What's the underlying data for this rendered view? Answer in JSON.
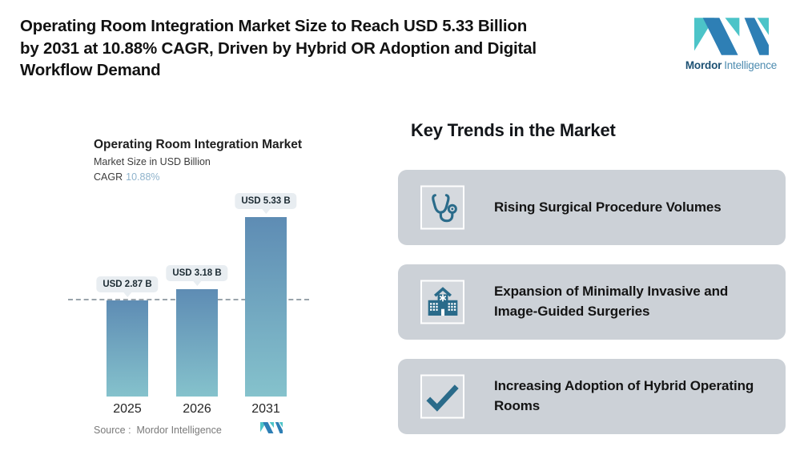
{
  "header": {
    "title_lines": [
      "Operating Room Integration Market Size to Reach USD 5.33 Billion",
      "by 2031 at 10.88% CAGR, Driven by Hybrid OR Adoption and Digital",
      "Workflow Demand"
    ]
  },
  "brand": {
    "name_bold": "Mordor",
    "name_light": "Intelligence"
  },
  "chart": {
    "title": "Operating Room Integration Market",
    "subtitle": "Market Size in USD Billion",
    "cagr_label": "CAGR",
    "cagr_value": "10.88%",
    "source_label": "Source :  Mordor Intelligence"
  },
  "chart_data": {
    "type": "bar",
    "title": "Operating Room Integration Market",
    "ylabel": "Market Size in USD Billion",
    "categories": [
      "2025",
      "2026",
      "2031"
    ],
    "values": [
      2.87,
      3.18,
      5.33
    ],
    "bar_labels": [
      "USD 2.87 B",
      "USD 3.18 B",
      "USD 5.33 B"
    ],
    "cagr": "10.88%",
    "reference_line": {
      "value": 2.87,
      "style": "dashed"
    },
    "ylim": [
      0,
      5.6
    ],
    "grid": false,
    "legend": "none"
  },
  "trends": {
    "heading": "Key Trends in the Market",
    "items": [
      {
        "icon": "stethoscope-icon",
        "label": "Rising Surgical Procedure Volumes"
      },
      {
        "icon": "hospital-icon",
        "label": "Expansion of Minimally Invasive and Image-Guided Surgeries"
      },
      {
        "icon": "checkmark-icon",
        "label": "Increasing Adoption of Hybrid Operating Rooms"
      }
    ]
  },
  "colors": {
    "bar_top": "#5e8cb4",
    "bar_bottom": "#85c2cc",
    "cagr_value": "#8fb3cc",
    "dashed_line": "#9aa4ab",
    "bubble_bg": "#e8edf1",
    "card_bg": "#ccd1d7",
    "icon_box_bg": "#d5d9de",
    "icon_color": "#2a6b8a",
    "brand_teal": "#4cc4c8",
    "brand_blue": "#2e7fb5"
  }
}
